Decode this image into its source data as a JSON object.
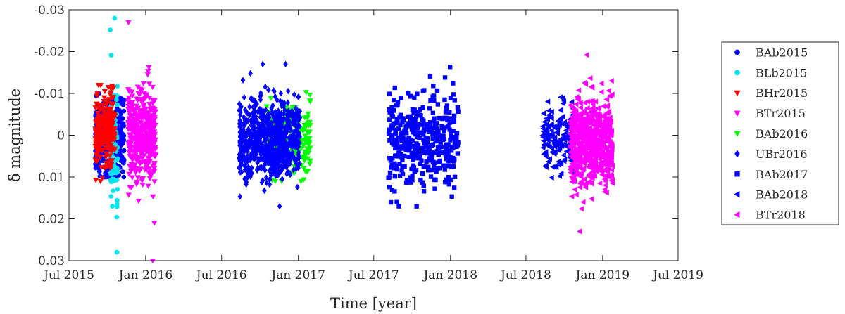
{
  "chart_data": {
    "type": "scatter",
    "title": "",
    "xlabel": "Time [year]",
    "ylabel": "δ magnitude",
    "y_reversed": true,
    "ylim": [
      -0.03,
      0.03
    ],
    "y_ticks": [
      -0.03,
      -0.02,
      -0.01,
      0,
      0.01,
      0.02,
      0.03
    ],
    "y_tick_labels": [
      "-0.03",
      "-0.02",
      "-0.01",
      "0",
      "0.01",
      "0.02",
      "0.03"
    ],
    "xlim": [
      "2015-07-01",
      "2019-07-01"
    ],
    "x_ticks": [
      "2015-07-01",
      "2016-01-01",
      "2016-07-01",
      "2017-01-01",
      "2017-07-01",
      "2018-01-01",
      "2018-07-01",
      "2019-01-01",
      "2019-07-01"
    ],
    "x_tick_labels": [
      "Jul 2015",
      "Jan 2016",
      "Jul 2016",
      "Jan 2017",
      "Jul 2017",
      "Jan 2018",
      "Jul 2018",
      "Jan 2019",
      "Jul 2019"
    ],
    "grid": false,
    "legend_position": "outside-right",
    "series": [
      {
        "name": "BAb2015",
        "marker": "circle",
        "color": "#0000ff",
        "start": "2015-09-02",
        "end": "2015-11-10",
        "center": 0.0,
        "spread": 0.0045,
        "max_dev": 0.01,
        "count": 360
      },
      {
        "name": "BLb2015",
        "marker": "circle",
        "color": "#00e5ee",
        "start": "2015-10-08",
        "end": "2015-10-26",
        "center": 0.0,
        "spread": 0.0085,
        "max_dev": 0.028,
        "count": 90
      },
      {
        "name": "BHr2015",
        "marker": "triangle-down",
        "color": "#ff0000",
        "start": "2015-09-02",
        "end": "2015-10-20",
        "center": -0.001,
        "spread": 0.0042,
        "max_dev": 0.012,
        "count": 260
      },
      {
        "name": "BTr2015",
        "marker": "triangle-down",
        "color": "#ff00ff",
        "start": "2015-11-20",
        "end": "2016-01-25",
        "center": 0.0,
        "spread": 0.005,
        "max_dev": 0.03,
        "count": 440
      },
      {
        "name": "BAb2016",
        "marker": "triangle-down",
        "color": "#00ff00",
        "start": "2016-10-15",
        "end": "2017-01-30",
        "center": 0.001,
        "spread": 0.004,
        "max_dev": 0.011,
        "count": 300
      },
      {
        "name": "UBr2016",
        "marker": "diamond",
        "color": "#0000ff",
        "start": "2016-08-12",
        "end": "2017-01-05",
        "center": 0.0005,
        "spread": 0.005,
        "max_dev": 0.017,
        "count": 700
      },
      {
        "name": "BAb2017",
        "marker": "square",
        "color": "#0000ff",
        "start": "2017-08-05",
        "end": "2018-01-20",
        "center": 0.0015,
        "spread": 0.0055,
        "max_dev": 0.017,
        "count": 430
      },
      {
        "name": "BAb2018",
        "marker": "triangle-left",
        "color": "#0000ff",
        "start": "2018-08-10",
        "end": "2018-10-28",
        "center": 0.0008,
        "spread": 0.004,
        "max_dev": 0.011,
        "count": 170
      },
      {
        "name": "BTr2018",
        "marker": "triangle-left",
        "color": "#ff00ff",
        "start": "2018-10-15",
        "end": "2019-01-25",
        "center": 0.0015,
        "spread": 0.0055,
        "max_dev": 0.023,
        "count": 680
      }
    ]
  }
}
